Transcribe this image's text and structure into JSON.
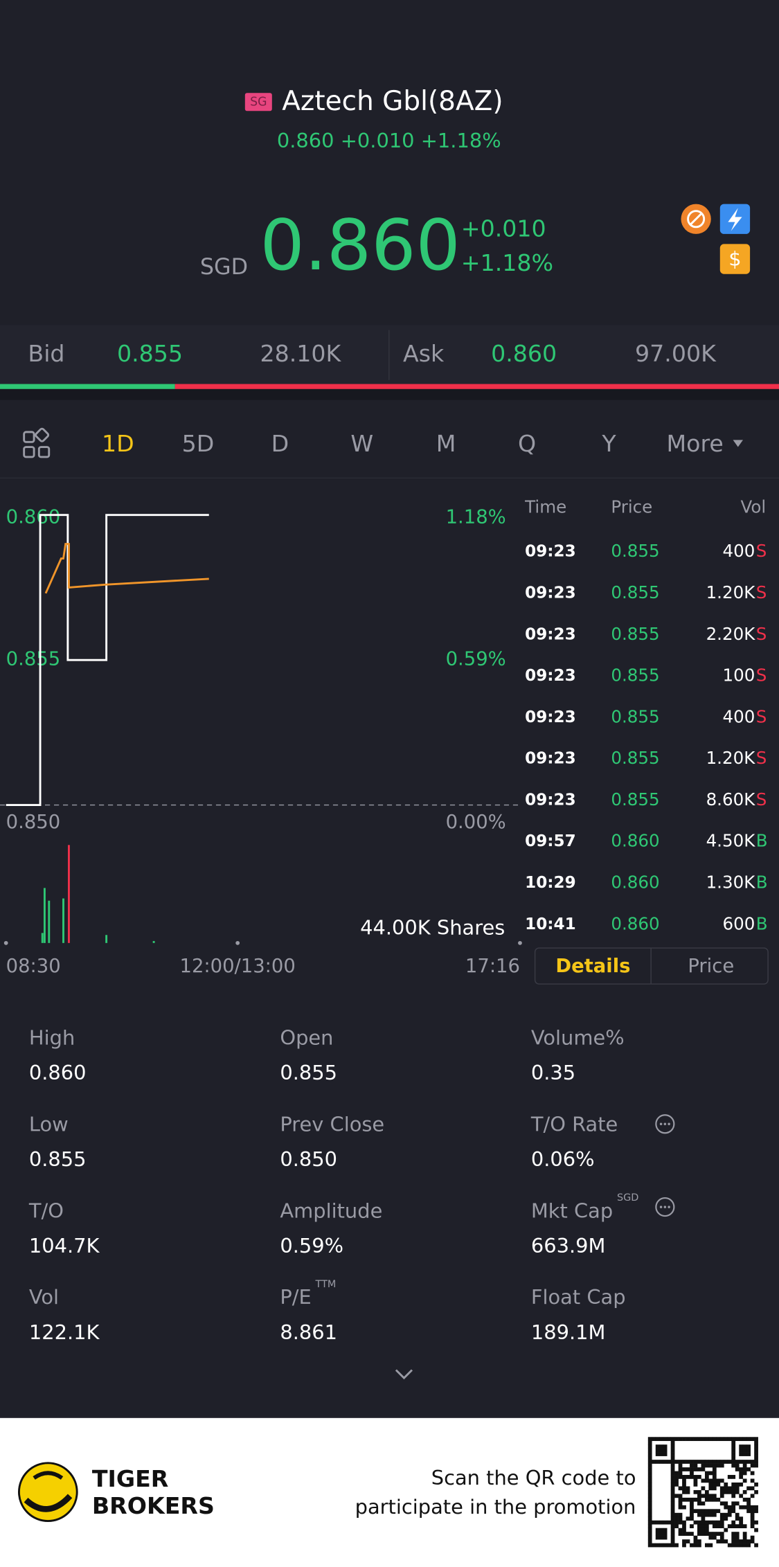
{
  "header": {
    "badge": "SG",
    "name": "Aztech Gbl(8AZ)",
    "summary": "0.860 +0.010 +1.18%",
    "currency": "SGD",
    "price": "0.860",
    "change": "+0.010",
    "change_pct": "+1.18%"
  },
  "quote": {
    "bid_label": "Bid",
    "bid": "0.855",
    "bid_volume": {
      "value": 28100,
      "label": "28.10K"
    },
    "ask_label": "Ask",
    "ask": "0.860",
    "ask_volume": {
      "value": 97000,
      "label": "97.00K"
    }
  },
  "tabs": [
    "1D",
    "5D",
    "D",
    "W",
    "M",
    "Q",
    "Y",
    "More"
  ],
  "active_tab": 0,
  "chart_data": {
    "type": "line",
    "xlim": [
      0,
      466
    ],
    "ylim": [
      0.85,
      0.86
    ],
    "yticks": [
      {
        "value": 0.86,
        "label": "0.860"
      },
      {
        "value": 0.855,
        "label": "0.855"
      },
      {
        "value": 0.85,
        "label": "0.850"
      }
    ],
    "y2lim": [
      0,
      1.18
    ],
    "y2ticks": [
      {
        "value": 1.18,
        "label": "1.18%"
      },
      {
        "value": 0.59,
        "label": "0.59%"
      },
      {
        "value": 0,
        "label": "0.00%"
      }
    ],
    "xticks": [
      {
        "value": 0,
        "label": "08:30"
      },
      {
        "value": 210,
        "label": "12:00/13:00"
      },
      {
        "value": 466,
        "label": "17:16"
      }
    ],
    "prev_close": 0.85,
    "series": [
      {
        "name": "Price",
        "color": "#ffffff",
        "x": [
          0,
          31,
          31,
          56,
          56,
          91,
          91,
          184
        ],
        "values": [
          0.85,
          0.85,
          0.86,
          0.86,
          0.855,
          0.855,
          0.86,
          0.86
        ]
      },
      {
        "name": "Average",
        "color": "#f0952a",
        "x": [
          36,
          36,
          50,
          52,
          54,
          57,
          57,
          90,
          184
        ],
        "values": [
          0.8573,
          0.8573,
          0.8585,
          0.8585,
          0.859,
          0.859,
          0.8575,
          0.8576,
          0.8578
        ]
      }
    ],
    "volume": {
      "label": "44.00K Shares",
      "ylim": [
        0,
        44000
      ],
      "x": [
        33,
        35,
        39,
        52,
        57,
        91,
        134
      ],
      "values": [
        4500,
        24700,
        19000,
        20000,
        44000,
        3600,
        900
      ],
      "colors": [
        "#2fc774",
        "#2fc774",
        "#2fc774",
        "#2fc774",
        "#f0304a",
        "#2fc774",
        "#2fc774"
      ]
    }
  },
  "trades": {
    "headers": [
      "Time",
      "Price",
      "Vol"
    ],
    "rows": [
      {
        "time": "09:23",
        "price": "0.855",
        "vol": "400",
        "side": "S"
      },
      {
        "time": "09:23",
        "price": "0.855",
        "vol": "1.20K",
        "side": "S"
      },
      {
        "time": "09:23",
        "price": "0.855",
        "vol": "2.20K",
        "side": "S"
      },
      {
        "time": "09:23",
        "price": "0.855",
        "vol": "100",
        "side": "S"
      },
      {
        "time": "09:23",
        "price": "0.855",
        "vol": "400",
        "side": "S"
      },
      {
        "time": "09:23",
        "price": "0.855",
        "vol": "1.20K",
        "side": "S"
      },
      {
        "time": "09:23",
        "price": "0.855",
        "vol": "8.60K",
        "side": "S"
      },
      {
        "time": "09:57",
        "price": "0.860",
        "vol": "4.50K",
        "side": "B"
      },
      {
        "time": "10:29",
        "price": "0.860",
        "vol": "1.30K",
        "side": "B"
      },
      {
        "time": "10:41",
        "price": "0.860",
        "vol": "600",
        "side": "B"
      }
    ]
  },
  "toggle": [
    "Details",
    "Price"
  ],
  "stats": [
    {
      "label": "High",
      "value": "0.860"
    },
    {
      "label": "Open",
      "value": "0.855"
    },
    {
      "label": "Volume%",
      "value": "0.35"
    },
    {
      "label": "Low",
      "value": "0.855"
    },
    {
      "label": "Prev Close",
      "value": "0.850"
    },
    {
      "label": "T/O Rate",
      "value": "0.06%"
    },
    {
      "label": "T/O",
      "value": "104.7K"
    },
    {
      "label": "Amplitude",
      "value": "0.59%"
    },
    {
      "label": "Mkt Cap",
      "value": "663.9M",
      "sup": "SGD"
    },
    {
      "label": "Vol",
      "value": "122.1K"
    },
    {
      "label": "P/E",
      "value": "8.861",
      "sup": "TTM"
    },
    {
      "label": "Float Cap",
      "value": "189.1M"
    }
  ],
  "footer": {
    "brand_line1": "TIGER",
    "brand_line2": "BROKERS",
    "promo_line1": "Scan the QR code to",
    "promo_line2": "participate in the promotion"
  }
}
